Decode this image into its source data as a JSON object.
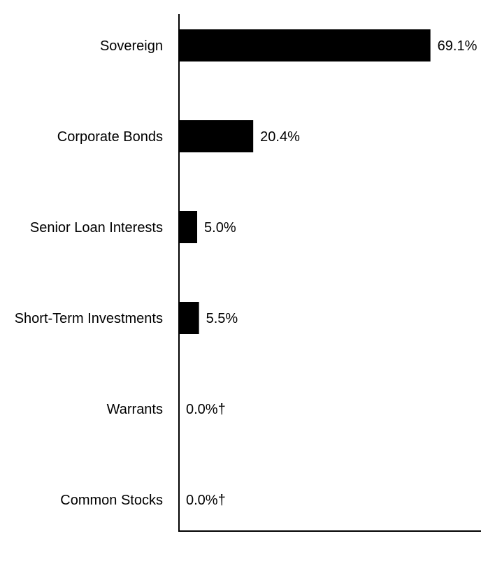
{
  "chart_data": {
    "type": "bar",
    "orientation": "horizontal",
    "categories": [
      "Sovereign",
      "Corporate Bonds",
      "Senior Loan Interests",
      "Short-Term Investments",
      "Warrants",
      "Common Stocks"
    ],
    "values": [
      69.1,
      20.4,
      5.0,
      5.5,
      0.0,
      0.0
    ],
    "value_labels": [
      "69.1%",
      "20.4%",
      "5.0%",
      "5.5%",
      "0.0%†",
      "0.0%†"
    ],
    "xlim": [
      0,
      83
    ],
    "bar_color": "#000000",
    "grid": false,
    "title": "",
    "xlabel": "",
    "ylabel": ""
  }
}
